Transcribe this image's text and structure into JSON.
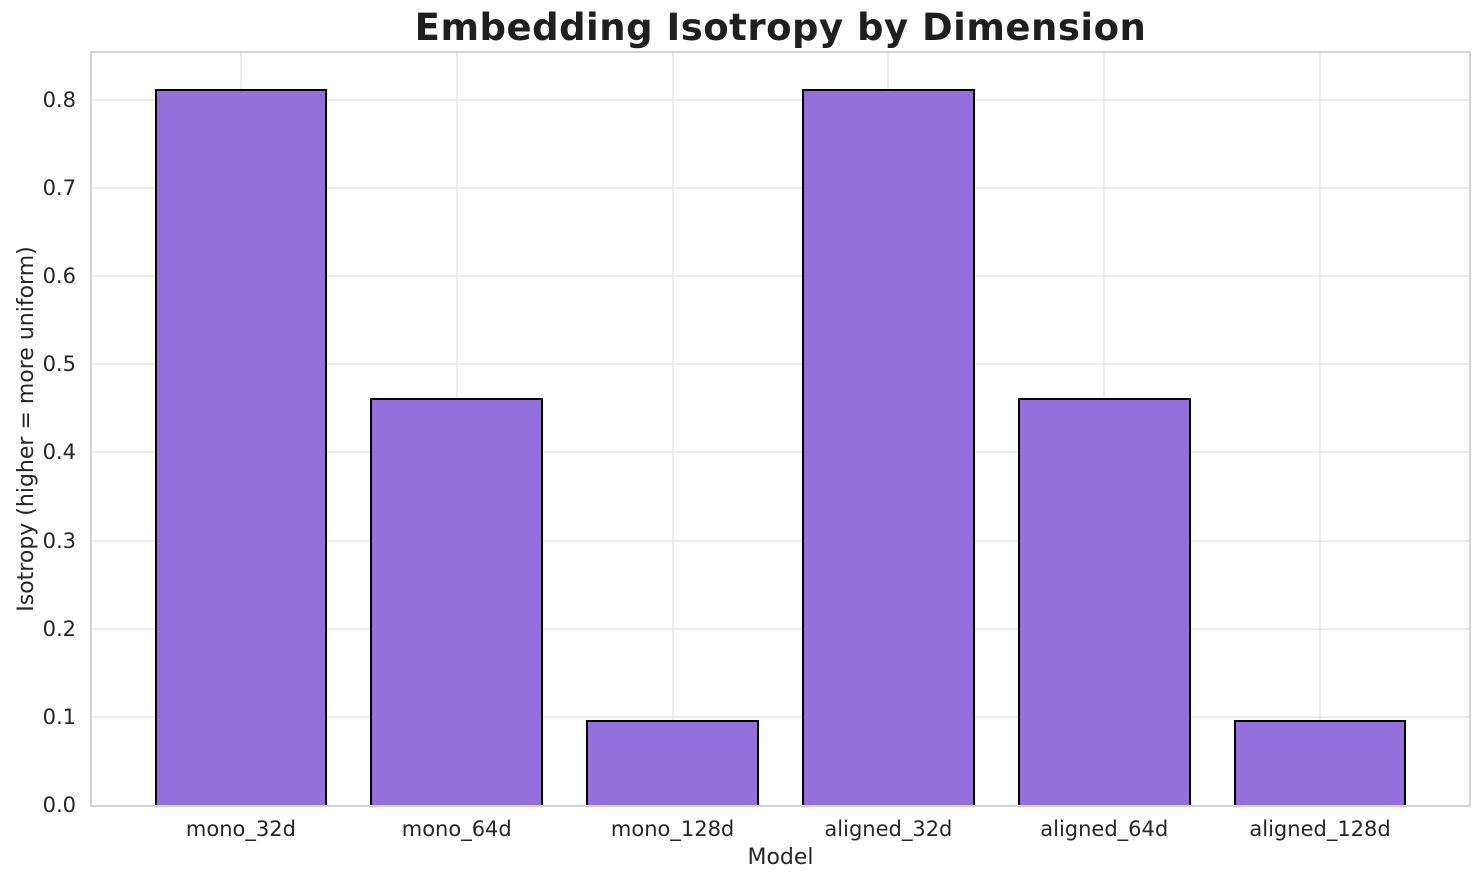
{
  "figure": {
    "background": "#ffffff"
  },
  "chart_data": {
    "type": "bar",
    "title": "Embedding Isotropy by Dimension",
    "xlabel": "Model",
    "ylabel": "Isotropy (higher = more uniform)",
    "categories": [
      "mono_32d",
      "mono_64d",
      "mono_128d",
      "aligned_32d",
      "aligned_64d",
      "aligned_128d"
    ],
    "values": [
      0.812,
      0.462,
      0.096,
      0.812,
      0.462,
      0.096
    ],
    "yticks": [
      0.0,
      0.1,
      0.2,
      0.3,
      0.4,
      0.5,
      0.6,
      0.7,
      0.8
    ],
    "ylim": [
      0,
      0.853
    ],
    "xlim": [
      -0.69,
      5.69
    ],
    "bar_width_units": 0.8,
    "grid": true,
    "legend": false,
    "colors": {
      "bar_fill": "#9370DB",
      "bar_edge": "#000000",
      "gridline": "#ececec",
      "spine": "#d4d4d4",
      "tick_text": "#262626",
      "title_text": "#1f1f1f"
    }
  }
}
